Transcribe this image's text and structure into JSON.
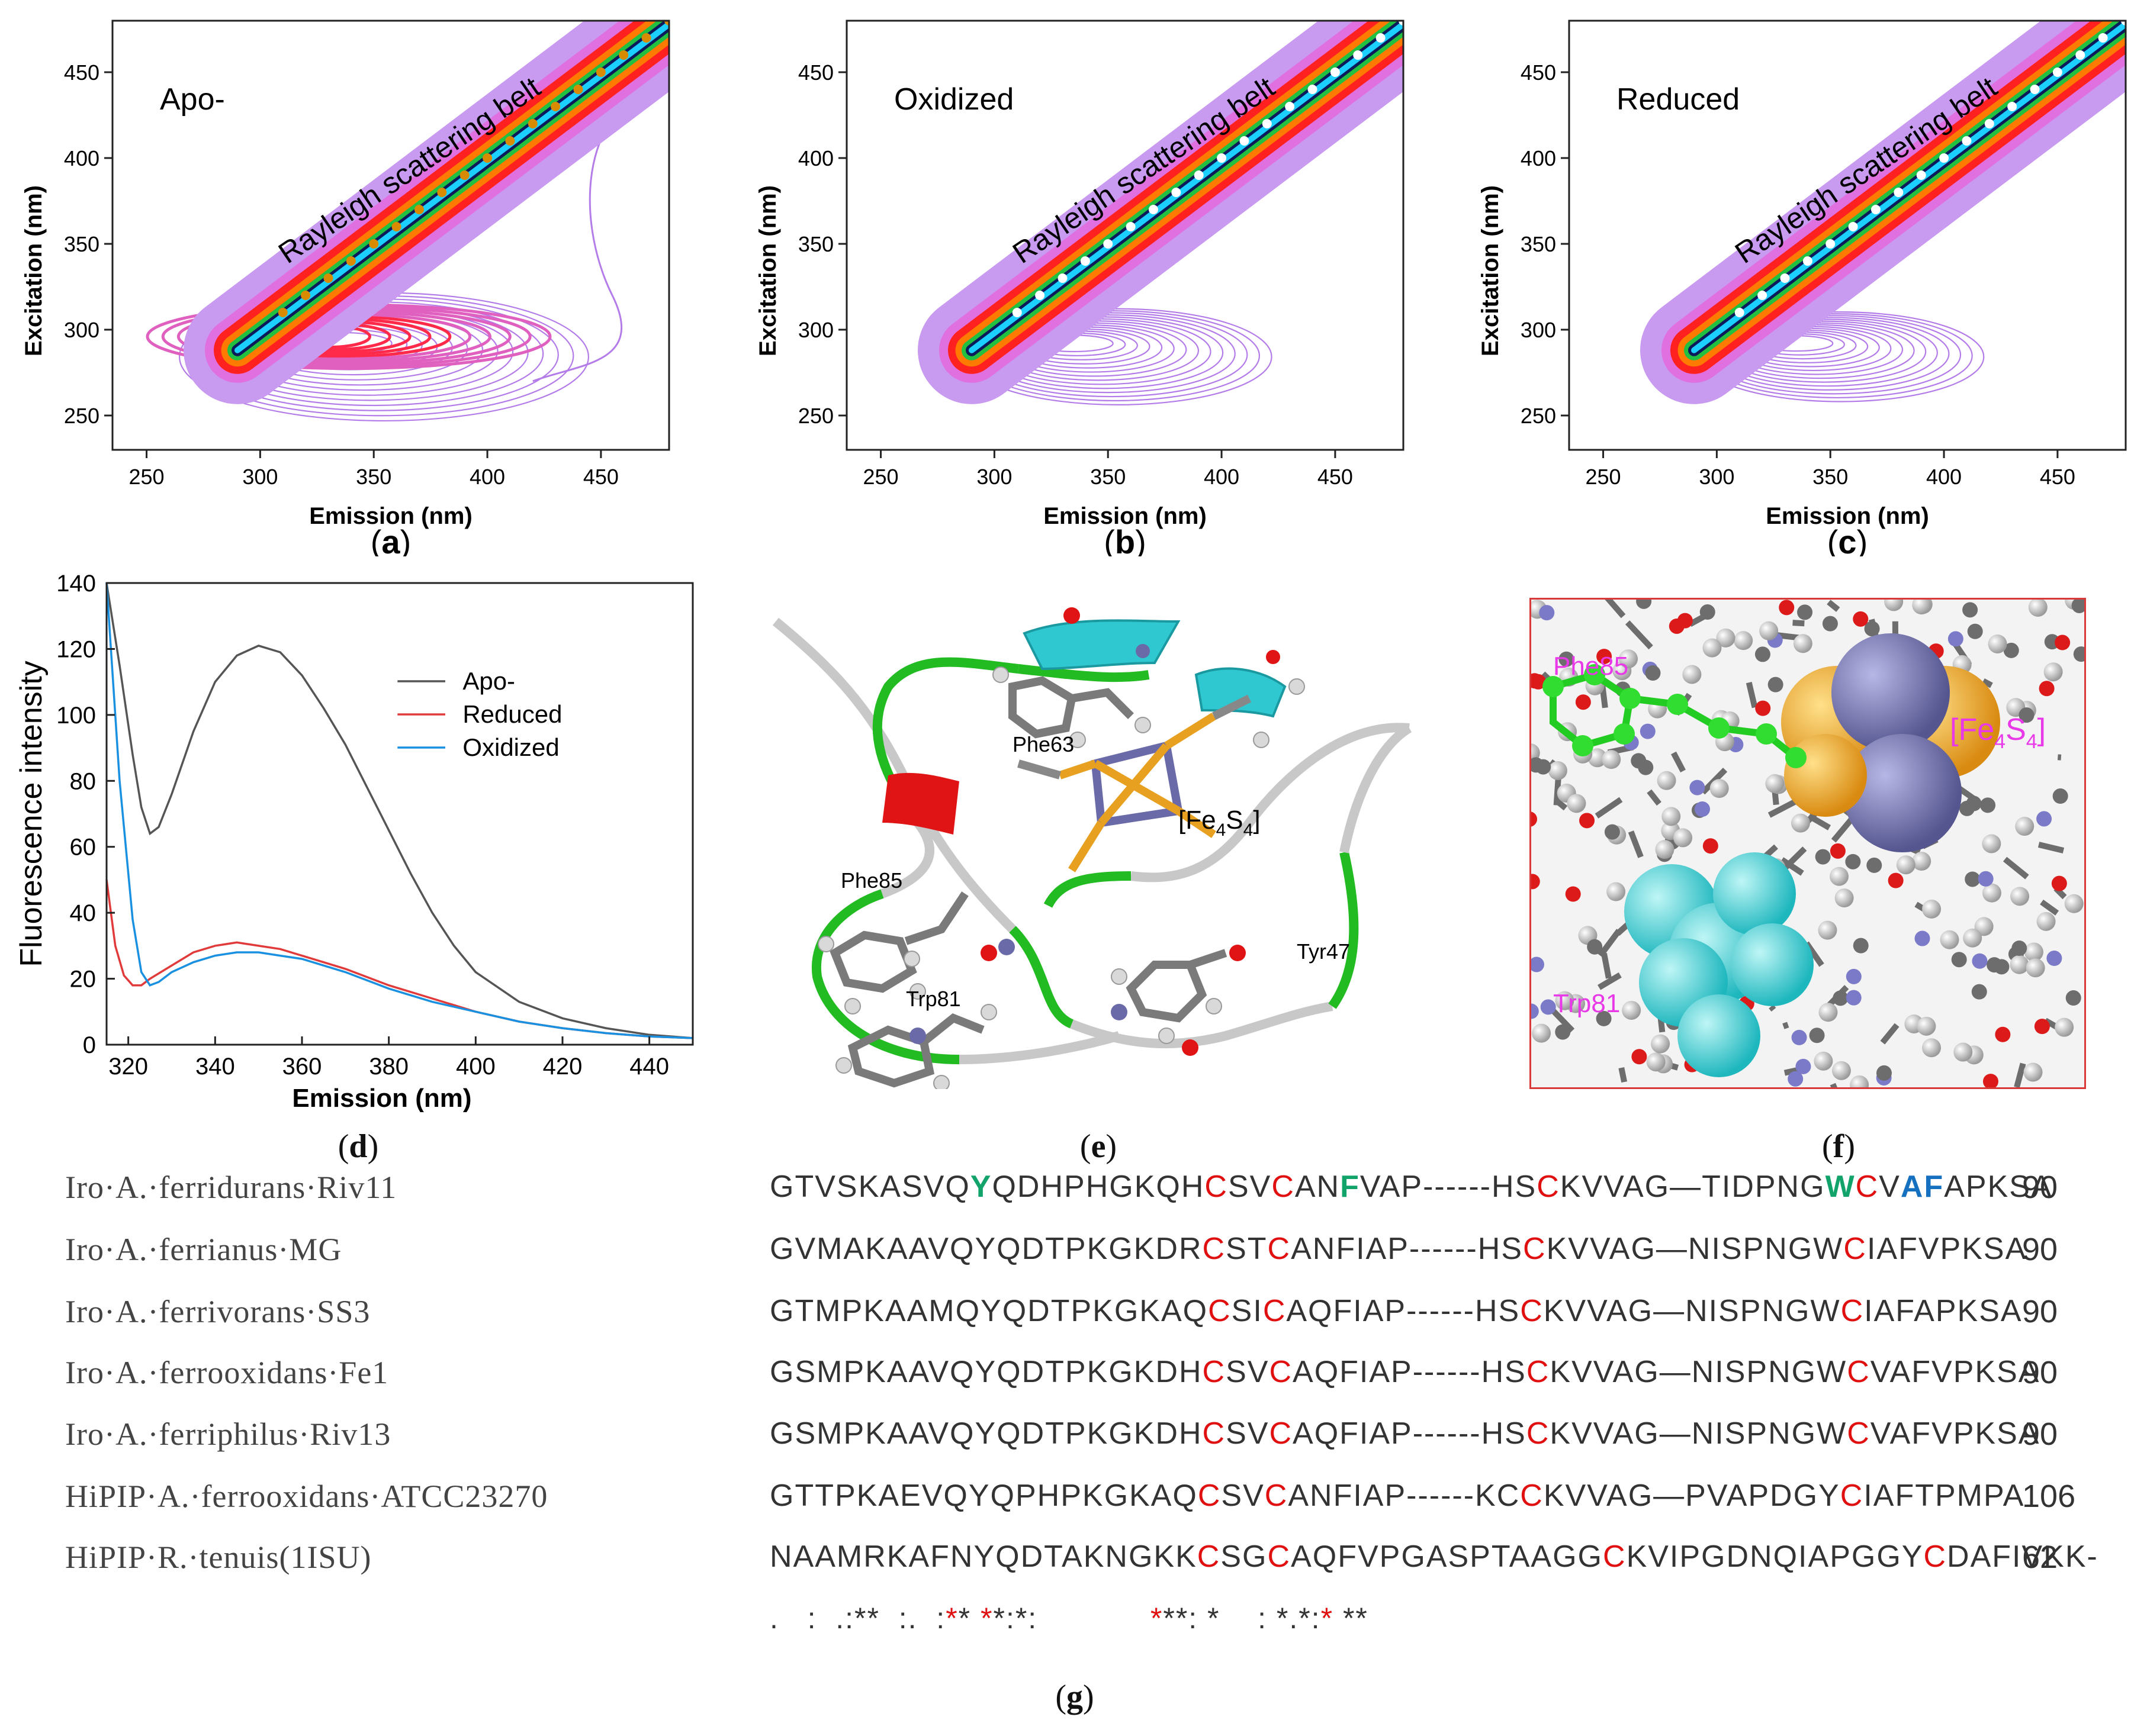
{
  "contour_panels": [
    {
      "label": "Apo-",
      "band": "Rayleigh scattering belt",
      "xlabel": "Emission (nm)",
      "ylabel": "Excitation (nm)",
      "caption": "a"
    },
    {
      "label": "Oxidized",
      "band": "Rayleigh scattering belt",
      "xlabel": "Emission (nm)",
      "ylabel": "Excitation (nm)",
      "caption": "b"
    },
    {
      "label": "Reduced",
      "band": "Rayleigh scattering belt",
      "xlabel": "Emission (nm)",
      "ylabel": "Excitation (nm)",
      "caption": "c"
    }
  ],
  "contour_axes": {
    "xticks": [
      "250",
      "300",
      "350",
      "400",
      "450"
    ],
    "yticks": [
      "250",
      "300",
      "350",
      "400",
      "450"
    ]
  },
  "chart_data": [
    {
      "type": "line",
      "title": "",
      "xlabel": "Emission (nm)",
      "ylabel": "Fluorescence intensity",
      "xlim": [
        315,
        450
      ],
      "ylim": [
        0,
        140
      ],
      "xticks": [
        "320",
        "340",
        "360",
        "380",
        "400",
        "420",
        "440"
      ],
      "yticks": [
        "0",
        "20",
        "40",
        "60",
        "80",
        "100",
        "120",
        "140"
      ],
      "legend": "upper-right",
      "series": [
        {
          "name": "Apo-",
          "color": "#555555",
          "x": [
            315,
            318,
            321,
            323,
            325,
            327,
            330,
            335,
            340,
            345,
            350,
            355,
            360,
            365,
            370,
            375,
            380,
            385,
            390,
            395,
            400,
            410,
            420,
            430,
            440,
            450
          ],
          "y": [
            140,
            115,
            88,
            72,
            64,
            66,
            76,
            95,
            110,
            118,
            121,
            119,
            112,
            102,
            91,
            78,
            65,
            52,
            40,
            30,
            22,
            13,
            8,
            5,
            3,
            2
          ]
        },
        {
          "name": "Reduced",
          "color": "#e03a3a",
          "x": [
            315,
            317,
            319,
            321,
            323,
            325,
            330,
            335,
            340,
            345,
            350,
            355,
            360,
            370,
            380,
            390,
            400,
            410,
            420,
            430,
            440,
            450
          ],
          "y": [
            50,
            30,
            21,
            18,
            18,
            20,
            24,
            28,
            30,
            31,
            30,
            29,
            27,
            23,
            18,
            14,
            10,
            7,
            5,
            3.5,
            2.5,
            2
          ]
        },
        {
          "name": "Oxidized",
          "color": "#1a90e0",
          "x": [
            315,
            318,
            321,
            323,
            325,
            327,
            330,
            335,
            340,
            345,
            350,
            355,
            360,
            370,
            380,
            390,
            400,
            410,
            420,
            430,
            440,
            450
          ],
          "y": [
            140,
            80,
            38,
            22,
            18,
            19,
            22,
            25,
            27,
            28,
            28,
            27,
            26,
            22,
            17,
            13,
            10,
            7,
            5,
            3.5,
            2.5,
            2
          ]
        }
      ]
    }
  ],
  "panel_d_caption": "d",
  "structure_e": {
    "labels": {
      "phe63": "Phe63",
      "phe85": "Phe85",
      "trp81": "Trp81",
      "tyr47": "Tyr47",
      "cluster": "[Fe",
      "cluster_sub1": "4",
      "cluster_mid": "S",
      "cluster_sub2": "4",
      "cluster_end": "]"
    },
    "caption": "e"
  },
  "structure_f": {
    "labels": {
      "phe85": "Phe85",
      "trp81": "Trp81",
      "cluster": "[Fe",
      "cluster_sub1": "4",
      "cluster_mid": "S",
      "cluster_sub2": "4",
      "cluster_end": "]"
    },
    "caption": "f"
  },
  "alignment": {
    "rows": [
      {
        "name": "Iro·A.·ferridurans·Riv11",
        "num": "90",
        "seg": [
          [
            "GTVSKASVQ",
            ""
          ],
          [
            "Y",
            "g"
          ],
          [
            "QDHPHGKQH",
            ""
          ],
          [
            "C",
            "r"
          ],
          [
            "SV",
            ""
          ],
          [
            "C",
            "r"
          ],
          [
            "AN",
            ""
          ],
          [
            "F",
            "g"
          ],
          [
            "VAP------HS",
            ""
          ],
          [
            "C",
            "r"
          ],
          [
            "KVVAG—TIDPNG",
            ""
          ],
          [
            "W",
            "g"
          ],
          [
            "C",
            "r"
          ],
          [
            "V",
            ""
          ],
          [
            "AF",
            "b"
          ],
          [
            "APKSA",
            ""
          ]
        ]
      },
      {
        "name": "Iro·A.·ferrianus·MG",
        "num": "90",
        "seg": [
          [
            "GVMAKAAVQYQDTPKGKDR",
            ""
          ],
          [
            "C",
            "r"
          ],
          [
            "ST",
            ""
          ],
          [
            "C",
            "r"
          ],
          [
            "ANFIAP------HS",
            ""
          ],
          [
            "C",
            "r"
          ],
          [
            "KVVAG—NISPNGW",
            ""
          ],
          [
            "C",
            "r"
          ],
          [
            "IAFVPKSA",
            ""
          ]
        ]
      },
      {
        "name": "Iro·A.·ferrivorans·SS3",
        "num": "90",
        "seg": [
          [
            "GTMPKAAMQYQDTPKGKAQ",
            ""
          ],
          [
            "C",
            "r"
          ],
          [
            "SI",
            ""
          ],
          [
            "C",
            "r"
          ],
          [
            "AQFIAP------HS",
            ""
          ],
          [
            "C",
            "r"
          ],
          [
            "KVVAG—NISPNGW",
            ""
          ],
          [
            "C",
            "r"
          ],
          [
            "IAFAPKSA",
            ""
          ]
        ]
      },
      {
        "name": "Iro·A.·ferrooxidans·Fe1",
        "num": "90",
        "seg": [
          [
            "GSMPKAAVQYQDTPKGKDH",
            ""
          ],
          [
            "C",
            "r"
          ],
          [
            "SV",
            ""
          ],
          [
            "C",
            "r"
          ],
          [
            "AQFIAP------HS",
            ""
          ],
          [
            "C",
            "r"
          ],
          [
            "KVVAG—NISPNGW",
            ""
          ],
          [
            "C",
            "r"
          ],
          [
            "VAFVPKSA",
            ""
          ]
        ]
      },
      {
        "name": "Iro·A.·ferriphilus·Riv13",
        "num": "90",
        "seg": [
          [
            "GSMPKAAVQYQDTPKGKDH",
            ""
          ],
          [
            "C",
            "r"
          ],
          [
            "SV",
            ""
          ],
          [
            "C",
            "r"
          ],
          [
            "AQFIAP------HS",
            ""
          ],
          [
            "C",
            "r"
          ],
          [
            "KVVAG—NISPNGW",
            ""
          ],
          [
            "C",
            "r"
          ],
          [
            "VAFVPKSA",
            ""
          ]
        ]
      },
      {
        "name": "HiPIP·A.·ferrooxidans·ATCC23270",
        "num": "106",
        "seg": [
          [
            "GTTPKAEVQYQPHPKGKAQ",
            ""
          ],
          [
            "C",
            "r"
          ],
          [
            "SV",
            ""
          ],
          [
            "C",
            "r"
          ],
          [
            "ANFIAP------KC",
            ""
          ],
          [
            "C",
            "r"
          ],
          [
            "KVVAG—PVAPDGY",
            ""
          ],
          [
            "C",
            "r"
          ],
          [
            "IAFTPMPA",
            ""
          ]
        ]
      },
      {
        "name": "HiPIP·R.·tenuis(1ISU)",
        "num": "62",
        "seg": [
          [
            "NAAMRKAFNYQDTAKNGKK",
            ""
          ],
          [
            "C",
            "r"
          ],
          [
            "SG",
            ""
          ],
          [
            "C",
            "r"
          ],
          [
            "AQFVPGASPTAAGG",
            ""
          ],
          [
            "C",
            "r"
          ],
          [
            "KVIPGDNQIAPGGY",
            ""
          ],
          [
            "C",
            "r"
          ],
          [
            "DAFIVKK-",
            ""
          ]
        ]
      }
    ],
    "consensus": [
      [
        ".   :  .:**  :.  :",
        ""
      ],
      [
        "*",
        "r"
      ],
      [
        "* ",
        ""
      ],
      [
        "*",
        "r"
      ],
      [
        "*:*:",
        ""
      ],
      [
        "            ",
        ""
      ],
      [
        "*",
        "r"
      ],
      [
        "**: *    : *.*:",
        ""
      ],
      [
        "*",
        "r"
      ],
      [
        " **",
        ""
      ]
    ],
    "caption": "g"
  }
}
